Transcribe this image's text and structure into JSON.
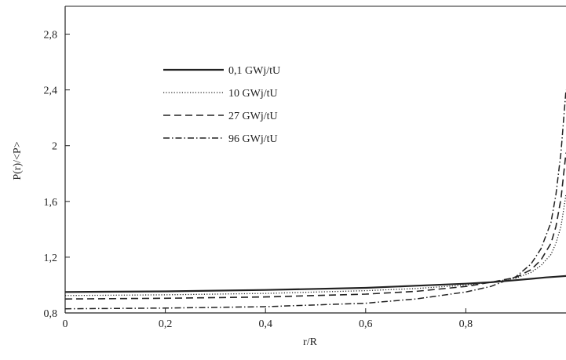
{
  "chart_data": {
    "type": "line",
    "title": "",
    "xlabel": "r/R",
    "ylabel": "P(r)/<P>",
    "xlim": [
      0,
      1
    ],
    "ylim": [
      0.8,
      3.0
    ],
    "x_ticks": [
      0,
      0.2,
      0.4,
      0.6,
      0.8
    ],
    "x_tick_labels": [
      "0",
      "0,2",
      "0,4",
      "0,6",
      "0,8"
    ],
    "y_ticks": [
      0.8,
      1.2,
      1.6,
      2.0,
      2.4,
      2.8
    ],
    "y_tick_labels": [
      "0,8",
      "1,2",
      "1,6",
      "2",
      "2,4",
      "2,8"
    ],
    "grid": false,
    "legend_position": "top-left",
    "series": [
      {
        "name": "0,1 GWj/tU",
        "style": "solid",
        "x": [
          0,
          0.2,
          0.4,
          0.6,
          0.7,
          0.8,
          0.85,
          0.9,
          0.93,
          0.96,
          0.98,
          1.0
        ],
        "y": [
          0.95,
          0.955,
          0.965,
          0.98,
          0.995,
          1.01,
          1.02,
          1.035,
          1.045,
          1.055,
          1.06,
          1.065
        ]
      },
      {
        "name": "10  GWj/tU",
        "style": "dotted",
        "x": [
          0,
          0.2,
          0.4,
          0.6,
          0.7,
          0.8,
          0.85,
          0.9,
          0.93,
          0.95,
          0.97,
          0.98,
          0.99,
          1.0
        ],
        "y": [
          0.925,
          0.93,
          0.94,
          0.96,
          0.975,
          1.0,
          1.02,
          1.05,
          1.09,
          1.14,
          1.22,
          1.3,
          1.42,
          1.65
        ]
      },
      {
        "name": "27  GWj/tU",
        "style": "dashed",
        "x": [
          0,
          0.2,
          0.4,
          0.6,
          0.7,
          0.8,
          0.85,
          0.9,
          0.93,
          0.95,
          0.97,
          0.98,
          0.99,
          1.0
        ],
        "y": [
          0.9,
          0.905,
          0.915,
          0.935,
          0.955,
          0.99,
          1.02,
          1.055,
          1.11,
          1.18,
          1.3,
          1.42,
          1.62,
          1.95
        ]
      },
      {
        "name": "96  GWj/tU",
        "style": "dash-dot",
        "x": [
          0,
          0.2,
          0.4,
          0.6,
          0.7,
          0.8,
          0.85,
          0.9,
          0.93,
          0.95,
          0.97,
          0.98,
          0.99,
          1.0
        ],
        "y": [
          0.83,
          0.835,
          0.845,
          0.87,
          0.9,
          0.95,
          0.99,
          1.06,
          1.15,
          1.26,
          1.45,
          1.65,
          1.95,
          2.4
        ]
      }
    ]
  }
}
